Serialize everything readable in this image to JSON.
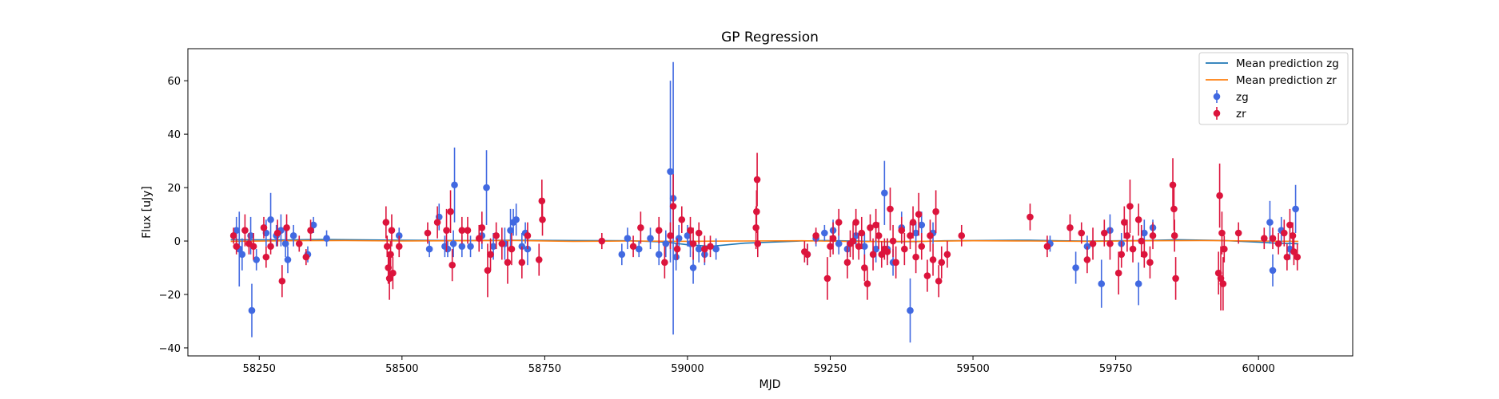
{
  "chart_data": {
    "type": "scatter",
    "title": "GP Regression",
    "xlabel": "MJD",
    "ylabel": "Flux [uJy]",
    "xlim": [
      58125,
      60165
    ],
    "ylim": [
      -43,
      72
    ],
    "xticks": [
      58250,
      58500,
      58750,
      59000,
      59250,
      59500,
      59750,
      60000
    ],
    "yticks": [
      -40,
      -20,
      0,
      20,
      40,
      60
    ],
    "grid": false,
    "legend_position": "top-right",
    "colors": {
      "zg": "#4169e1",
      "zr": "#dc143c",
      "mean_zg": "#1f77b4",
      "mean_zr": "#ff7f0e"
    },
    "lines": [
      {
        "name": "Mean prediction zg",
        "color": "#1f77b4",
        "x": [
          58200,
          58300,
          58360,
          58500,
          58600,
          58700,
          58800,
          58900,
          58950,
          58970,
          59000,
          59040,
          59100,
          59200,
          59240,
          59300,
          59350,
          59400,
          59450,
          59500,
          59600,
          59650,
          59700,
          59800,
          59860,
          59940,
          60000,
          60030,
          60070
        ],
        "y": [
          0.5,
          0.4,
          0.6,
          0.3,
          0.2,
          0.3,
          0.2,
          0.1,
          -0.3,
          -0.6,
          -1.4,
          -2.0,
          -0.8,
          0.0,
          0.2,
          0.0,
          -0.3,
          -0.2,
          0.1,
          0.2,
          0.3,
          0.1,
          0.0,
          0.2,
          0.5,
          0.2,
          -0.4,
          -0.8,
          -1.0
        ]
      },
      {
        "name": "Mean prediction zr",
        "color": "#ff7f0e",
        "x": [
          58200,
          58300,
          58400,
          58500,
          58600,
          58700,
          58800,
          58900,
          59000,
          59100,
          59200,
          59300,
          59400,
          59500,
          59600,
          59700,
          59800,
          59900,
          60000,
          60070
        ],
        "y": [
          -0.1,
          0.1,
          0.2,
          0.0,
          0.1,
          0.2,
          -0.1,
          0.0,
          -0.1,
          0.0,
          0.1,
          -0.2,
          -0.1,
          0.1,
          0.0,
          -0.1,
          0.1,
          0.2,
          0.0,
          -0.1
        ]
      }
    ],
    "series": [
      {
        "name": "zg",
        "color": "#4169e1",
        "points": [
          [
            58210,
            4,
            5
          ],
          [
            58215,
            -3,
            14
          ],
          [
            58220,
            -5,
            6
          ],
          [
            58235,
            2,
            7
          ],
          [
            58237,
            -26,
            10
          ],
          [
            58245,
            -7,
            4
          ],
          [
            58262,
            3,
            5
          ],
          [
            58270,
            8,
            10
          ],
          [
            58280,
            2,
            4
          ],
          [
            58288,
            4,
            6
          ],
          [
            58296,
            -1,
            5
          ],
          [
            58300,
            -7,
            5
          ],
          [
            58310,
            2,
            4
          ],
          [
            58335,
            -5,
            3
          ],
          [
            58345,
            6,
            3
          ],
          [
            58368,
            1,
            3
          ],
          [
            58495,
            2,
            3
          ],
          [
            58548,
            -3,
            3
          ],
          [
            58565,
            9,
            5
          ],
          [
            58575,
            -2,
            4
          ],
          [
            58580,
            -3,
            3
          ],
          [
            58590,
            -1,
            5
          ],
          [
            58592,
            21,
            14
          ],
          [
            58605,
            -2,
            4
          ],
          [
            58620,
            -2,
            4
          ],
          [
            58640,
            2,
            5
          ],
          [
            58648,
            20,
            14
          ],
          [
            58660,
            -2,
            5
          ],
          [
            58680,
            -1,
            6
          ],
          [
            58690,
            4,
            8
          ],
          [
            58695,
            7,
            5
          ],
          [
            58700,
            8,
            6
          ],
          [
            58710,
            -2,
            5
          ],
          [
            58716,
            3,
            4
          ],
          [
            58720,
            -3,
            6
          ],
          [
            58885,
            -5,
            4
          ],
          [
            58895,
            1,
            4
          ],
          [
            58915,
            -3,
            3
          ],
          [
            58935,
            1,
            4
          ],
          [
            58950,
            -5,
            4
          ],
          [
            58962,
            -1,
            5
          ],
          [
            58970,
            26,
            34
          ],
          [
            58975,
            16,
            51
          ],
          [
            58980,
            -6,
            5
          ],
          [
            58985,
            1,
            5
          ],
          [
            59000,
            2,
            4
          ],
          [
            59005,
            -1,
            5
          ],
          [
            59010,
            -10,
            6
          ],
          [
            59020,
            -3,
            5
          ],
          [
            59030,
            -5,
            4
          ],
          [
            59050,
            -3,
            4
          ],
          [
            59210,
            -5,
            4
          ],
          [
            59225,
            1,
            3
          ],
          [
            59240,
            3,
            3
          ],
          [
            59255,
            4,
            4
          ],
          [
            59265,
            -1,
            4
          ],
          [
            59280,
            -3,
            3
          ],
          [
            59295,
            2,
            4
          ],
          [
            59310,
            -2,
            5
          ],
          [
            59330,
            -3,
            5
          ],
          [
            59345,
            18,
            12
          ],
          [
            59350,
            -3,
            4
          ],
          [
            59360,
            -8,
            5
          ],
          [
            59375,
            5,
            6
          ],
          [
            59390,
            -26,
            12
          ],
          [
            59400,
            3,
            4
          ],
          [
            59410,
            6,
            5
          ],
          [
            59430,
            3,
            4
          ],
          [
            59635,
            -1,
            3
          ],
          [
            59680,
            -10,
            6
          ],
          [
            59700,
            -2,
            4
          ],
          [
            59725,
            -16,
            9
          ],
          [
            59740,
            4,
            6
          ],
          [
            59760,
            -1,
            4
          ],
          [
            59790,
            -16,
            8
          ],
          [
            59800,
            3,
            5
          ],
          [
            59815,
            5,
            3
          ],
          [
            60020,
            7,
            8
          ],
          [
            60025,
            -11,
            6
          ],
          [
            60040,
            4,
            5
          ],
          [
            60055,
            -3,
            4
          ],
          [
            60065,
            12,
            9
          ]
        ]
      },
      {
        "name": "zr",
        "color": "#dc143c",
        "points": [
          [
            58205,
            2,
            3
          ],
          [
            58210,
            -2,
            3
          ],
          [
            58225,
            4,
            6
          ],
          [
            58232,
            -1,
            4
          ],
          [
            58240,
            -2,
            5
          ],
          [
            58258,
            5,
            4
          ],
          [
            58262,
            -6,
            4
          ],
          [
            58270,
            -2,
            3
          ],
          [
            58282,
            3,
            5
          ],
          [
            58290,
            -15,
            6
          ],
          [
            58298,
            5,
            5
          ],
          [
            58320,
            -1,
            3
          ],
          [
            58332,
            -6,
            3
          ],
          [
            58340,
            4,
            4
          ],
          [
            58472,
            7,
            6
          ],
          [
            58474,
            -2,
            4
          ],
          [
            58476,
            -10,
            6
          ],
          [
            58478,
            -14,
            8
          ],
          [
            58480,
            -5,
            5
          ],
          [
            58482,
            4,
            6
          ],
          [
            58484,
            -12,
            6
          ],
          [
            58495,
            -2,
            4
          ],
          [
            58545,
            3,
            4
          ],
          [
            58562,
            7,
            6
          ],
          [
            58578,
            4,
            8
          ],
          [
            58585,
            11,
            8
          ],
          [
            58588,
            -9,
            6
          ],
          [
            58605,
            4,
            5
          ],
          [
            58615,
            4,
            5
          ],
          [
            58635,
            1,
            5
          ],
          [
            58640,
            5,
            6
          ],
          [
            58650,
            -11,
            10
          ],
          [
            58655,
            -5,
            6
          ],
          [
            58665,
            2,
            5
          ],
          [
            58675,
            -1,
            6
          ],
          [
            58685,
            -8,
            8
          ],
          [
            58692,
            -3,
            6
          ],
          [
            58710,
            -8,
            6
          ],
          [
            58720,
            2,
            5
          ],
          [
            58740,
            -7,
            6
          ],
          [
            58745,
            15,
            8
          ],
          [
            58746,
            8,
            6
          ],
          [
            58850,
            0,
            3
          ],
          [
            58905,
            -2,
            4
          ],
          [
            58918,
            5,
            6
          ],
          [
            58950,
            4,
            5
          ],
          [
            58960,
            -8,
            6
          ],
          [
            58970,
            2,
            5
          ],
          [
            58975,
            13,
            12
          ],
          [
            58982,
            -3,
            4
          ],
          [
            58990,
            8,
            5
          ],
          [
            59005,
            4,
            5
          ],
          [
            59010,
            -1,
            6
          ],
          [
            59020,
            3,
            4
          ],
          [
            59030,
            -3,
            5
          ],
          [
            59040,
            -2,
            4
          ],
          [
            59120,
            5,
            8
          ],
          [
            59121,
            11,
            8
          ],
          [
            59122,
            23,
            10
          ],
          [
            59123,
            -1,
            5
          ],
          [
            59205,
            -4,
            4
          ],
          [
            59210,
            -5,
            4
          ],
          [
            59225,
            2,
            3
          ],
          [
            59245,
            -14,
            8
          ],
          [
            59250,
            -2,
            4
          ],
          [
            59255,
            1,
            6
          ],
          [
            59265,
            7,
            5
          ],
          [
            59280,
            -8,
            6
          ],
          [
            59285,
            -1,
            5
          ],
          [
            59290,
            0,
            7
          ],
          [
            59295,
            7,
            5
          ],
          [
            59300,
            -2,
            5
          ],
          [
            59305,
            3,
            6
          ],
          [
            59310,
            -10,
            5
          ],
          [
            59315,
            -16,
            6
          ],
          [
            59320,
            5,
            5
          ],
          [
            59325,
            -5,
            6
          ],
          [
            59330,
            6,
            6
          ],
          [
            59335,
            2,
            5
          ],
          [
            59340,
            -5,
            5
          ],
          [
            59345,
            -3,
            4
          ],
          [
            59350,
            -4,
            5
          ],
          [
            59355,
            12,
            8
          ],
          [
            59360,
            0,
            6
          ],
          [
            59365,
            -8,
            6
          ],
          [
            59375,
            4,
            5
          ],
          [
            59380,
            -3,
            6
          ],
          [
            59390,
            2,
            5
          ],
          [
            59395,
            7,
            6
          ],
          [
            59400,
            -6,
            6
          ],
          [
            59405,
            10,
            8
          ],
          [
            59410,
            -2,
            5
          ],
          [
            59420,
            -13,
            6
          ],
          [
            59425,
            2,
            6
          ],
          [
            59430,
            -7,
            6
          ],
          [
            59435,
            11,
            8
          ],
          [
            59440,
            -15,
            6
          ],
          [
            59445,
            -8,
            6
          ],
          [
            59455,
            -5,
            5
          ],
          [
            59480,
            2,
            4
          ],
          [
            59600,
            9,
            5
          ],
          [
            59630,
            -2,
            4
          ],
          [
            59670,
            5,
            5
          ],
          [
            59690,
            3,
            4
          ],
          [
            59700,
            -7,
            5
          ],
          [
            59710,
            -1,
            6
          ],
          [
            59730,
            3,
            5
          ],
          [
            59740,
            -1,
            6
          ],
          [
            59755,
            -12,
            8
          ],
          [
            59760,
            -5,
            5
          ],
          [
            59765,
            7,
            6
          ],
          [
            59770,
            2,
            6
          ],
          [
            59775,
            13,
            10
          ],
          [
            59780,
            -3,
            5
          ],
          [
            59790,
            8,
            6
          ],
          [
            59795,
            0,
            6
          ],
          [
            59800,
            -5,
            5
          ],
          [
            59810,
            -8,
            6
          ],
          [
            59815,
            2,
            5
          ],
          [
            59850,
            21,
            10
          ],
          [
            59852,
            12,
            8
          ],
          [
            59853,
            2,
            6
          ],
          [
            59855,
            -14,
            8
          ],
          [
            59930,
            -12,
            8
          ],
          [
            59932,
            17,
            12
          ],
          [
            59934,
            -14,
            12
          ],
          [
            59936,
            3,
            8
          ],
          [
            59938,
            -16,
            10
          ],
          [
            59940,
            -3,
            5
          ],
          [
            59965,
            3,
            4
          ],
          [
            60010,
            1,
            4
          ],
          [
            60025,
            1,
            4
          ],
          [
            60035,
            -1,
            4
          ],
          [
            60045,
            3,
            5
          ],
          [
            60050,
            -6,
            5
          ],
          [
            60055,
            6,
            6
          ],
          [
            60060,
            2,
            5
          ],
          [
            60062,
            -4,
            5
          ],
          [
            60068,
            -6,
            5
          ]
        ]
      }
    ],
    "legend": [
      {
        "label": "Mean prediction zg",
        "kind": "line",
        "color": "#1f77b4"
      },
      {
        "label": "Mean prediction zr",
        "kind": "line",
        "color": "#ff7f0e"
      },
      {
        "label": "zg",
        "kind": "errorbar",
        "color": "#4169e1"
      },
      {
        "label": "zr",
        "kind": "errorbar",
        "color": "#dc143c"
      }
    ]
  }
}
